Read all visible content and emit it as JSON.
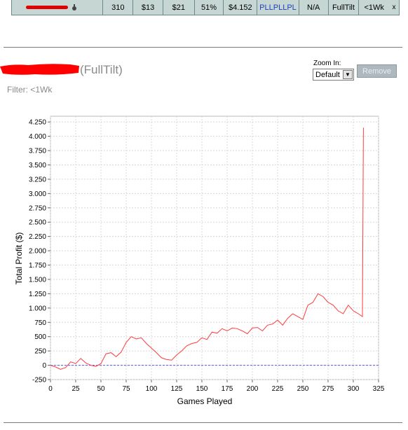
{
  "stats_row": {
    "player_name": "",
    "games": "310",
    "avg_buyin": "$13",
    "buyin": "$21",
    "pct": "51%",
    "profit": "$4.152",
    "recent_results": "PLLPLLPL",
    "streak": "N/A",
    "site": "FullTilt",
    "filter": "<1Wk",
    "close": "x"
  },
  "heading": {
    "player_name_redacted": "",
    "site_suffix": "(FullTilt)",
    "filter_text": "Filter: <1Wk"
  },
  "zoom": {
    "label": "Zoom In:",
    "selected": "Default"
  },
  "remove_label": "Remove",
  "colors": {
    "line": "#ff3b3b",
    "baseline": "#5a5ae6",
    "grid": "#d8d8d8",
    "redaction": "#ff0000"
  },
  "chart_data": {
    "type": "line",
    "xlabel": "Games Played",
    "ylabel": "Total Profit ($)",
    "xlim": [
      0,
      325
    ],
    "ylim": [
      -250,
      4350
    ],
    "x_ticks": [
      0,
      25,
      50,
      75,
      100,
      125,
      150,
      175,
      200,
      225,
      250,
      275,
      300,
      325
    ],
    "y_ticks": [
      -250,
      0,
      250,
      500,
      750,
      1000,
      1250,
      1500,
      1750,
      2000,
      2250,
      2500,
      2750,
      3000,
      3250,
      3500,
      3750,
      4000,
      4250
    ],
    "x_tick_labels": [
      "0",
      "25",
      "50",
      "75",
      "100",
      "125",
      "150",
      "175",
      "200",
      "225",
      "250",
      "275",
      "300",
      "325"
    ],
    "y_tick_labels": [
      "-250",
      "0",
      "250",
      "500",
      "750",
      "1.000",
      "1.250",
      "1.500",
      "1.750",
      "2.000",
      "2.250",
      "2.500",
      "2.750",
      "3.000",
      "3.250",
      "3.500",
      "3.750",
      "4.000",
      "4.250"
    ],
    "grid": true,
    "baseline": 0,
    "series": [
      {
        "x": [
          0,
          5,
          10,
          15,
          20,
          25,
          30,
          35,
          40,
          45,
          50,
          55,
          60,
          65,
          70,
          75,
          80,
          85,
          90,
          95,
          100,
          105,
          110,
          115,
          120,
          125,
          130,
          135,
          140,
          145,
          150,
          155,
          160,
          165,
          170,
          175,
          180,
          185,
          190,
          195,
          200,
          205,
          210,
          215,
          220,
          225,
          230,
          235,
          240,
          245,
          250,
          255,
          260,
          265,
          270,
          275,
          280,
          285,
          290,
          295,
          300,
          305,
          309,
          310
        ],
        "y": [
          0,
          -30,
          -70,
          -40,
          60,
          30,
          120,
          40,
          0,
          -20,
          30,
          200,
          220,
          150,
          230,
          400,
          500,
          460,
          480,
          380,
          300,
          220,
          130,
          100,
          90,
          180,
          250,
          340,
          380,
          400,
          480,
          450,
          580,
          560,
          640,
          600,
          650,
          640,
          600,
          550,
          650,
          660,
          600,
          700,
          720,
          790,
          700,
          820,
          900,
          850,
          800,
          1050,
          1100,
          1250,
          1200,
          1100,
          1050,
          950,
          900,
          1050,
          950,
          900,
          850,
          4150
        ]
      }
    ]
  }
}
